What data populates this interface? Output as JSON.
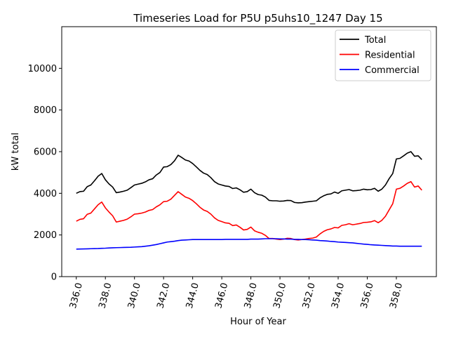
{
  "chart_data": {
    "type": "line",
    "title": "Timeseries Load for P5U p5uhs10_1247  Day 15",
    "xlabel": "Hour of Year",
    "ylabel": "kW total",
    "xlim": [
      335.0,
      360.75
    ],
    "ylim": [
      0,
      12000
    ],
    "xticks": [
      336,
      338,
      340,
      342,
      344,
      346,
      348,
      350,
      352,
      354,
      356,
      358
    ],
    "xtick_labels": [
      "336.0",
      "338.0",
      "340.0",
      "342.0",
      "344.0",
      "346.0",
      "348.0",
      "350.0",
      "352.0",
      "354.0",
      "356.0",
      "358.0"
    ],
    "yticks": [
      0,
      2000,
      4000,
      6000,
      8000,
      10000
    ],
    "ytick_labels": [
      "0",
      "2000",
      "4000",
      "6000",
      "8000",
      "10000"
    ],
    "legend_position": "top-right",
    "grid": false,
    "x": {
      "start": 336.0,
      "step": 0.25,
      "count": 96
    },
    "series": [
      {
        "name": "Total",
        "color": "#000000",
        "values": [
          4000,
          4080,
          4100,
          4320,
          4400,
          4600,
          4820,
          4950,
          4650,
          4450,
          4300,
          4030,
          4060,
          4100,
          4150,
          4270,
          4400,
          4440,
          4480,
          4550,
          4650,
          4700,
          4880,
          5000,
          5260,
          5280,
          5380,
          5560,
          5830,
          5720,
          5600,
          5550,
          5430,
          5270,
          5100,
          4970,
          4900,
          4750,
          4560,
          4450,
          4400,
          4350,
          4330,
          4230,
          4260,
          4170,
          4050,
          4080,
          4200,
          4030,
          3940,
          3910,
          3820,
          3660,
          3640,
          3640,
          3620,
          3630,
          3660,
          3650,
          3560,
          3540,
          3550,
          3580,
          3600,
          3620,
          3640,
          3780,
          3880,
          3950,
          3970,
          4060,
          4000,
          4120,
          4150,
          4180,
          4120,
          4130,
          4150,
          4200,
          4170,
          4180,
          4240,
          4100,
          4200,
          4400,
          4700,
          4950,
          5650,
          5680,
          5800,
          5930,
          6000,
          5780,
          5800,
          5620
        ]
      },
      {
        "name": "Residential",
        "color": "#ff0000",
        "values": [
          2660,
          2750,
          2780,
          2990,
          3050,
          3250,
          3450,
          3580,
          3300,
          3100,
          2920,
          2620,
          2660,
          2700,
          2760,
          2870,
          3000,
          3020,
          3050,
          3100,
          3180,
          3220,
          3350,
          3450,
          3600,
          3620,
          3720,
          3900,
          4080,
          3950,
          3820,
          3760,
          3650,
          3500,
          3330,
          3200,
          3130,
          3000,
          2820,
          2700,
          2640,
          2580,
          2560,
          2450,
          2480,
          2370,
          2240,
          2270,
          2380,
          2200,
          2130,
          2080,
          1980,
          1830,
          1830,
          1800,
          1780,
          1800,
          1840,
          1830,
          1780,
          1760,
          1780,
          1800,
          1830,
          1850,
          1900,
          2050,
          2170,
          2250,
          2290,
          2360,
          2340,
          2460,
          2490,
          2540,
          2490,
          2520,
          2550,
          2600,
          2610,
          2630,
          2690,
          2590,
          2700,
          2900,
          3200,
          3500,
          4200,
          4240,
          4350,
          4480,
          4560,
          4300,
          4350,
          4150
        ]
      },
      {
        "name": "Commercial",
        "color": "#0000ff",
        "values": [
          1320,
          1325,
          1330,
          1335,
          1340,
          1345,
          1350,
          1360,
          1365,
          1375,
          1385,
          1390,
          1395,
          1400,
          1405,
          1410,
          1420,
          1430,
          1440,
          1460,
          1480,
          1510,
          1540,
          1580,
          1620,
          1660,
          1680,
          1700,
          1730,
          1750,
          1760,
          1770,
          1780,
          1780,
          1780,
          1780,
          1780,
          1780,
          1780,
          1780,
          1780,
          1790,
          1790,
          1790,
          1790,
          1790,
          1790,
          1790,
          1800,
          1800,
          1800,
          1810,
          1820,
          1820,
          1820,
          1820,
          1810,
          1810,
          1800,
          1800,
          1790,
          1790,
          1780,
          1780,
          1770,
          1760,
          1750,
          1730,
          1720,
          1710,
          1690,
          1680,
          1660,
          1650,
          1640,
          1630,
          1620,
          1600,
          1580,
          1560,
          1550,
          1530,
          1520,
          1510,
          1500,
          1490,
          1480,
          1470,
          1470,
          1460,
          1460,
          1460,
          1460,
          1460,
          1460,
          1460
        ]
      }
    ]
  }
}
